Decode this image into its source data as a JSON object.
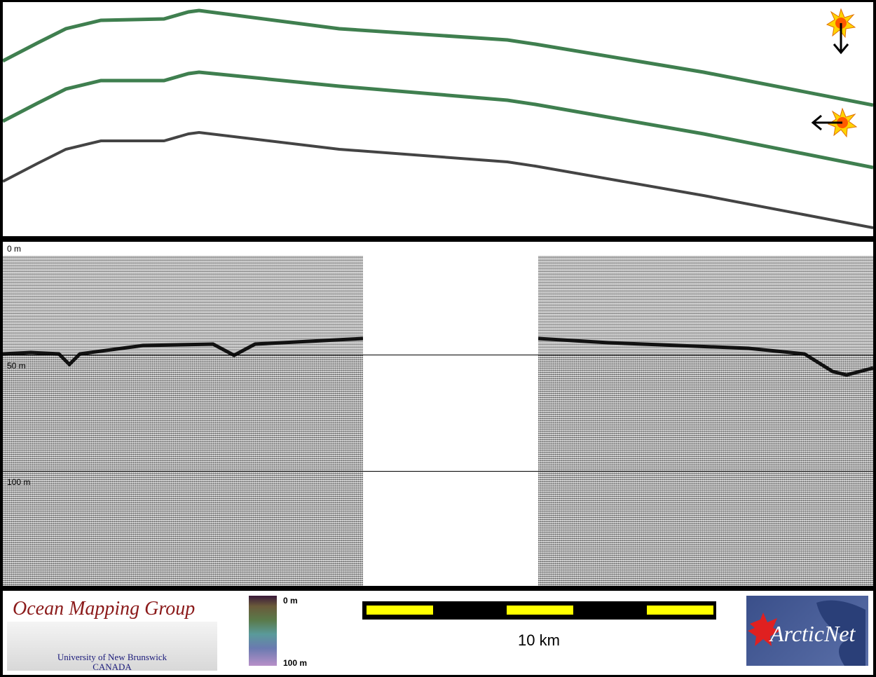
{
  "profile": {
    "sun_icons": [
      "sun-icon",
      "sun-icon"
    ],
    "arrows": [
      "arrow-down-icon",
      "arrow-left-icon"
    ],
    "colors": {
      "line_top": "#3f7f4f",
      "line_middle": "#3f7f4f",
      "line_bottom": "#444444"
    }
  },
  "sonar": {
    "depth_labels": {
      "top": "0 m",
      "mid": "50 m",
      "bottom": "100 m"
    }
  },
  "footer": {
    "omg_title": "Ocean Mapping Group",
    "omg_institution_line1": "University of New Brunswick",
    "omg_institution_line2": "CANADA",
    "colorbar_top": "0 m",
    "colorbar_bottom": "100 m",
    "scale_label": "10 km",
    "scale_color": "#ffff00",
    "arcticnet_text": "ArcticNet"
  }
}
